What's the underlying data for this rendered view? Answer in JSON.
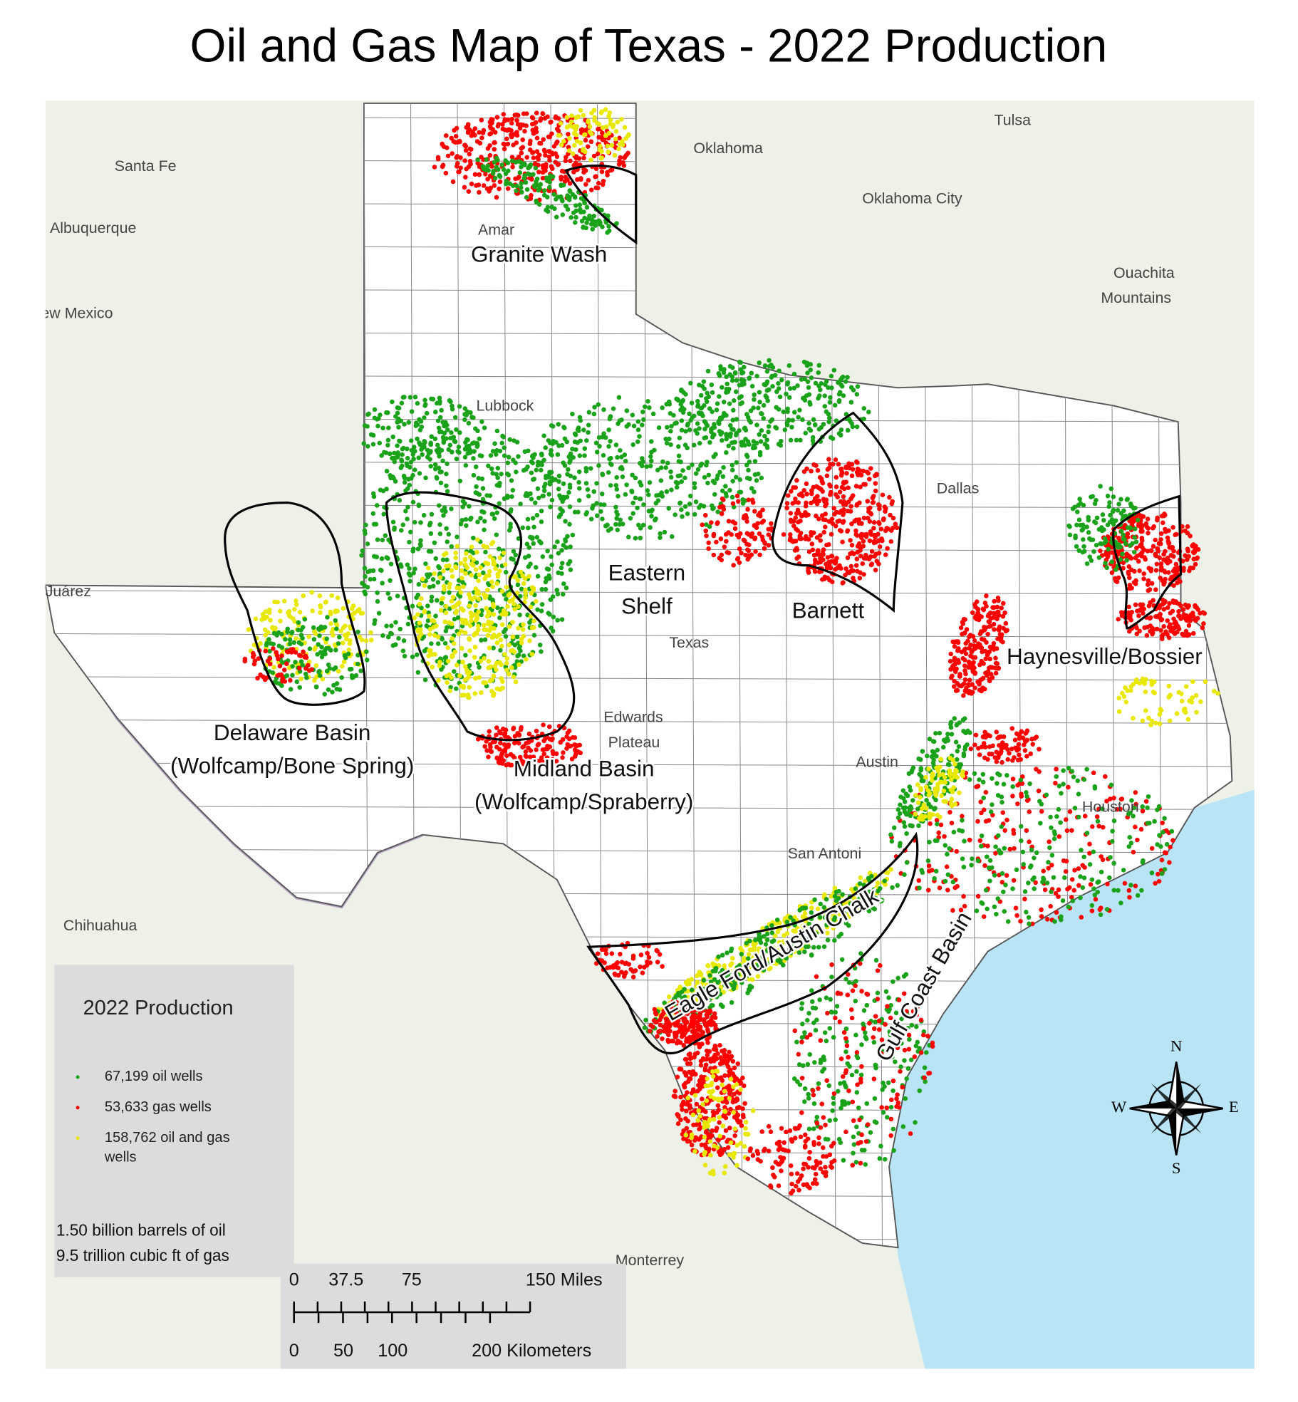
{
  "title": "Oil and Gas Map of Texas - 2022 Production",
  "places": [
    "Santa Fe",
    "Albuquerque",
    "ew Mexico",
    "Oklahoma",
    "Tulsa",
    "Oklahoma City",
    "Ouachita",
    "Mountains",
    "Lubbock",
    "Amar",
    "Dallas",
    "Juárez",
    "Texas",
    "Edwards",
    "Plateau",
    "Austin",
    "Houston",
    "San Antoni",
    "Chihuahua",
    "Monterrey"
  ],
  "regions": [
    {
      "lines": [
        "Granite Wash"
      ]
    },
    {
      "lines": [
        "Eastern",
        "Shelf"
      ]
    },
    {
      "lines": [
        "Barnett"
      ]
    },
    {
      "lines": [
        "Haynesville/Bossier"
      ]
    },
    {
      "lines": [
        "Delaware Basin",
        "(Wolfcamp/Bone Spring)"
      ]
    },
    {
      "lines": [
        "Midland Basin",
        "(Wolfcamp/Spraberry)"
      ]
    },
    {
      "lines": [
        "Eagle Ford/Austin Chalk"
      ]
    },
    {
      "lines": [
        "Gulf Coast Basin"
      ]
    }
  ],
  "legend": {
    "title": "2022 Production",
    "items": [
      {
        "label": [
          "67,199 oil wells"
        ],
        "color": "#1aa31a"
      },
      {
        "label": [
          "53,633 gas wells"
        ],
        "color": "#ff0000"
      },
      {
        "label": [
          "158,762 oil and gas",
          "wells"
        ],
        "color": "#e8e800"
      }
    ],
    "totals": [
      "1.50 billion barrels of oil",
      "9.5 trillion cubic ft of gas"
    ]
  },
  "scale_bar": {
    "miles": [
      "0",
      "37.5",
      "75",
      "150 Miles"
    ],
    "kilometers": [
      "0",
      "50",
      "100",
      "200 Kilometers"
    ]
  },
  "compass": [
    "N",
    "E",
    "S",
    "W"
  ]
}
